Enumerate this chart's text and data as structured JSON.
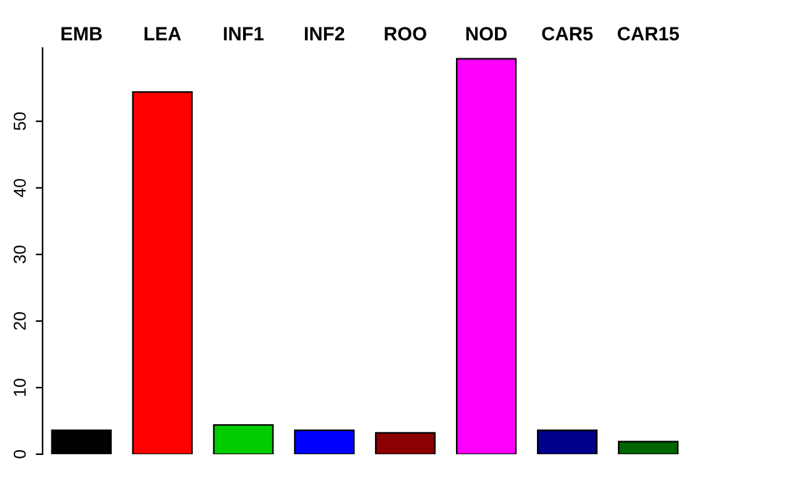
{
  "chart_data": {
    "type": "bar",
    "categories": [
      "EMB",
      "LEA",
      "INF1",
      "INF2",
      "ROO",
      "NOD",
      "CAR5",
      "CAR15"
    ],
    "values": [
      3.6,
      54.4,
      4.4,
      3.6,
      3.2,
      59.4,
      3.6,
      1.9
    ],
    "colors": [
      "#000000",
      "#ff0000",
      "#00cd00",
      "#0000ff",
      "#8b0000",
      "#ff00ff",
      "#00008b",
      "#006400"
    ],
    "ylim": [
      0,
      61
    ],
    "yticks": [
      0,
      10,
      20,
      30,
      40,
      50
    ],
    "grid": false,
    "legend": false
  }
}
